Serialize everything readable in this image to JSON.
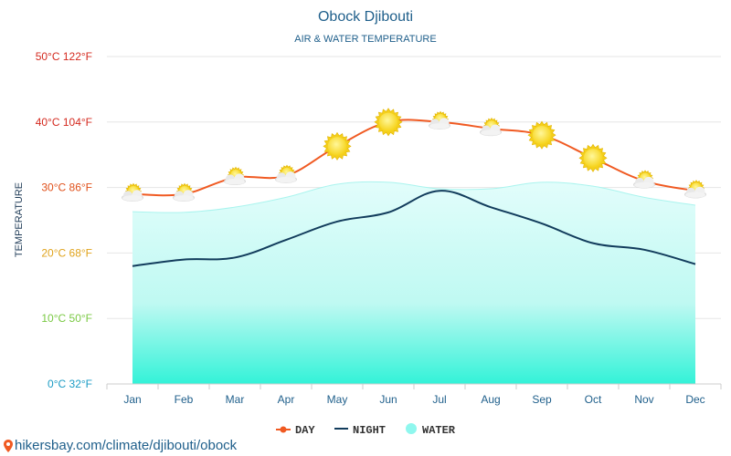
{
  "chart_data": {
    "type": "line",
    "title": "Obock Djibouti",
    "subtitle": "AIR & WATER TEMPERATURE",
    "ylabel": "TEMPERATURE",
    "categories": [
      "Jan",
      "Feb",
      "Mar",
      "Apr",
      "May",
      "Jun",
      "Jul",
      "Aug",
      "Sep",
      "Oct",
      "Nov",
      "Dec"
    ],
    "ylim": [
      0,
      50
    ],
    "yticks": [
      {
        "value": 0,
        "label": "0°C 32°F",
        "color": "#1a9bc4"
      },
      {
        "value": 10,
        "label": "10°C 50°F",
        "color": "#7ac943"
      },
      {
        "value": 20,
        "label": "20°C 68°F",
        "color": "#e0a31c"
      },
      {
        "value": 30,
        "label": "30°C 86°F",
        "color": "#e0501a"
      },
      {
        "value": 40,
        "label": "40°C 104°F",
        "color": "#d42a1f"
      },
      {
        "value": 50,
        "label": "50°C 122°F",
        "color": "#d42a1f"
      }
    ],
    "series": [
      {
        "name": "DAY",
        "color": "#f05a22",
        "values": [
          29,
          29,
          31.5,
          31.8,
          36.3,
          40,
          40,
          39,
          38,
          34.5,
          31,
          29.5
        ]
      },
      {
        "name": "NIGHT",
        "color": "#123c5c",
        "values": [
          18,
          19,
          19.3,
          22,
          24.8,
          26.2,
          29.5,
          27,
          24.5,
          21.5,
          20.5,
          18.3
        ]
      },
      {
        "name": "WATER",
        "color": "#8ff7ee",
        "values": [
          26.3,
          26.2,
          27,
          28.5,
          30.5,
          30.8,
          29.8,
          29.8,
          30.8,
          30.2,
          28.5,
          27.3
        ]
      }
    ],
    "weather_icons": [
      "cloud-sun-icon",
      "cloud-sun-icon",
      "cloud-sun-icon",
      "cloud-sun-icon",
      "sun-icon",
      "sun-icon",
      "cloud-sun-icon",
      "cloud-sun-icon",
      "sun-icon",
      "sun-icon",
      "cloud-sun-icon",
      "cloud-sun-icon"
    ],
    "grid": true,
    "legend_position": "bottom-center"
  },
  "footer": {
    "url": "hikersbay.com/climate/djibouti/obock"
  }
}
